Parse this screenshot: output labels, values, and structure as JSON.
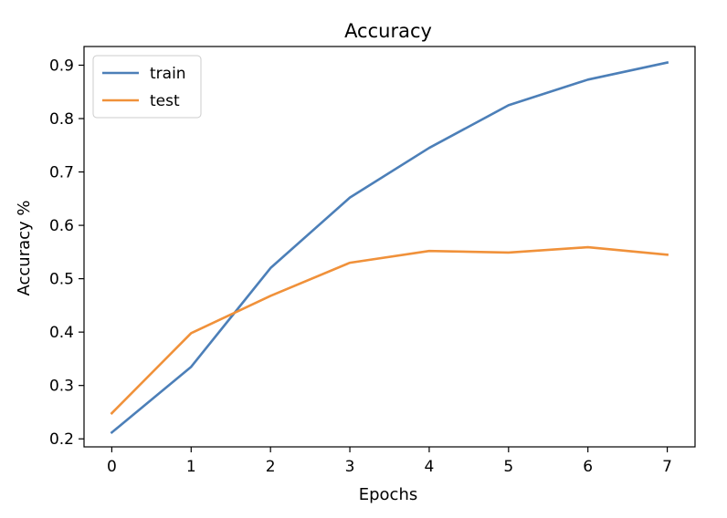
{
  "chart_data": {
    "type": "line",
    "title": "Accuracy",
    "xlabel": "Epochs",
    "ylabel": "Accuracy %",
    "x": [
      0,
      1,
      2,
      3,
      4,
      5,
      6,
      7
    ],
    "xticks": [
      "0",
      "1",
      "2",
      "3",
      "4",
      "5",
      "6",
      "7"
    ],
    "yticks": [
      "0.2",
      "0.3",
      "0.4",
      "0.5",
      "0.6",
      "0.7",
      "0.8",
      "0.9"
    ],
    "xlim": [
      -0.35,
      7.35
    ],
    "ylim": [
      0.185,
      0.935
    ],
    "grid": false,
    "legend_position": "top-left",
    "series": [
      {
        "name": "train",
        "color": "#4c7fb8",
        "values": [
          0.212,
          0.335,
          0.52,
          0.652,
          0.745,
          0.825,
          0.873,
          0.905
        ]
      },
      {
        "name": "test",
        "color": "#f0913a",
        "values": [
          0.248,
          0.398,
          0.468,
          0.53,
          0.552,
          0.549,
          0.559,
          0.545
        ]
      }
    ]
  }
}
